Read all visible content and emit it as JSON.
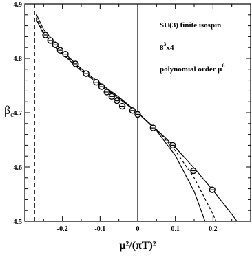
{
  "chart_data": {
    "type": "line",
    "title": "",
    "xlabel": "μ²/(πT)²",
    "ylabel": "β",
    "ylabel_sub": "c",
    "xlim": [
      -0.3,
      0.3
    ],
    "ylim": [
      4.5,
      4.9
    ],
    "x_ticks": [
      -0.2,
      -0.1,
      0,
      0.1,
      0.2
    ],
    "x_tick_labels": [
      "-0.2",
      "-0.1",
      "0",
      "0.1",
      "0.2"
    ],
    "y_ticks": [
      4.5,
      4.6,
      4.7,
      4.8,
      4.9
    ],
    "y_tick_labels": [
      "4.5",
      "4.6",
      "4.7",
      "4.8",
      "4.9"
    ],
    "grid": false,
    "annotations": {
      "line1": "SU(3) finite isospin",
      "line2_base": "8",
      "line2_sup": "3",
      "line2_rest": "x4",
      "line3_base": "polynomial order μ",
      "line3_sup": "6"
    },
    "vertical_lines": [
      {
        "x": -0.274,
        "style": "dashed"
      },
      {
        "x": 0,
        "style": "solid"
      }
    ],
    "series": [
      {
        "style": "markers",
        "marker": "circle",
        "x": [
          -0.245,
          -0.232,
          -0.219,
          -0.206,
          -0.192,
          -0.165,
          -0.137,
          -0.11,
          -0.096,
          -0.082,
          -0.069,
          -0.055,
          -0.041,
          -0.014,
          0.0,
          0.041,
          0.093,
          0.148,
          0.198
        ],
        "y": [
          4.843,
          4.833,
          4.825,
          4.815,
          4.808,
          4.79,
          4.772,
          4.756,
          4.748,
          4.738,
          4.73,
          4.722,
          4.712,
          4.704,
          4.697,
          4.672,
          4.64,
          4.593,
          4.558
        ]
      },
      {
        "style": "solid",
        "x": [
          -0.27,
          -0.25,
          -0.2,
          -0.15,
          -0.1,
          -0.05,
          0.0,
          0.05,
          0.1,
          0.15,
          0.2,
          0.25,
          0.3
        ],
        "y": [
          4.882,
          4.853,
          4.813,
          4.781,
          4.754,
          4.729,
          4.7,
          4.669,
          4.636,
          4.598,
          4.557,
          4.513,
          4.465
        ]
      },
      {
        "style": "dashed",
        "x": [
          -0.27,
          -0.25,
          -0.2,
          -0.15,
          -0.1,
          -0.05,
          0.0,
          0.05,
          0.1,
          0.15,
          0.2,
          0.22
        ],
        "y": [
          4.876,
          4.848,
          4.81,
          4.779,
          4.752,
          4.727,
          4.7,
          4.669,
          4.63,
          4.58,
          4.513,
          4.48
        ]
      },
      {
        "style": "solid",
        "x": [
          -0.27,
          -0.25,
          -0.2,
          -0.15,
          -0.1,
          -0.05,
          0.0,
          0.05,
          0.1,
          0.15,
          0.2
        ],
        "y": [
          4.872,
          4.845,
          4.808,
          4.777,
          4.751,
          4.726,
          4.7,
          4.667,
          4.621,
          4.555,
          4.46
        ]
      }
    ]
  }
}
